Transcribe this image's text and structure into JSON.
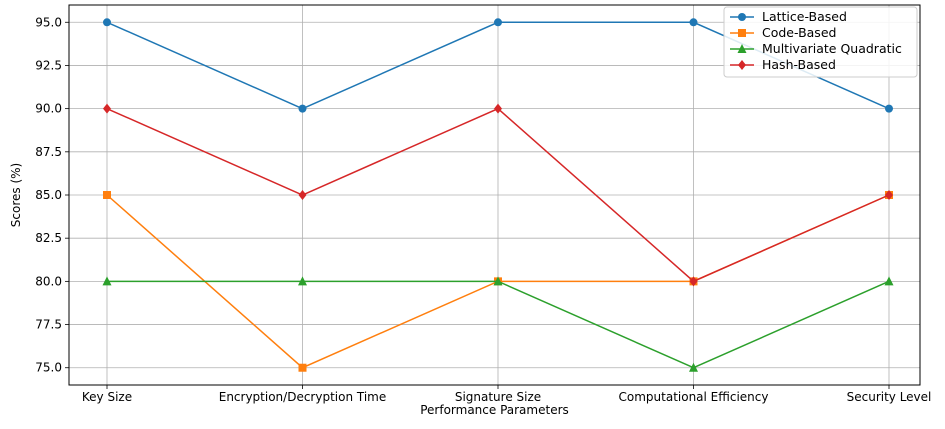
{
  "chart_data": {
    "type": "line",
    "title": "",
    "xlabel": "Performance Parameters",
    "ylabel": "Scores (%)",
    "categories": [
      "Key Size",
      "Encryption/Decryption Time",
      "Signature Size",
      "Computational Efficiency",
      "Security Level"
    ],
    "ylim": [
      74.0,
      96.0
    ],
    "yticks": [
      "75.0",
      "77.5",
      "80.0",
      "82.5",
      "85.0",
      "87.5",
      "90.0",
      "92.5",
      "95.0"
    ],
    "grid": true,
    "legend_position": "top-right",
    "series": [
      {
        "name": "Lattice-Based",
        "color": "#1f77b4",
        "marker": "circle",
        "values": [
          95,
          90,
          95,
          95,
          90
        ]
      },
      {
        "name": "Code-Based",
        "color": "#ff7f0e",
        "marker": "square",
        "values": [
          85,
          75,
          80,
          80,
          85
        ]
      },
      {
        "name": "Multivariate Quadratic",
        "color": "#2ca02c",
        "marker": "triangle",
        "values": [
          80,
          80,
          80,
          75,
          80
        ]
      },
      {
        "name": "Hash-Based",
        "color": "#d62728",
        "marker": "diamond",
        "values": [
          90,
          85,
          90,
          80,
          85
        ]
      }
    ]
  }
}
